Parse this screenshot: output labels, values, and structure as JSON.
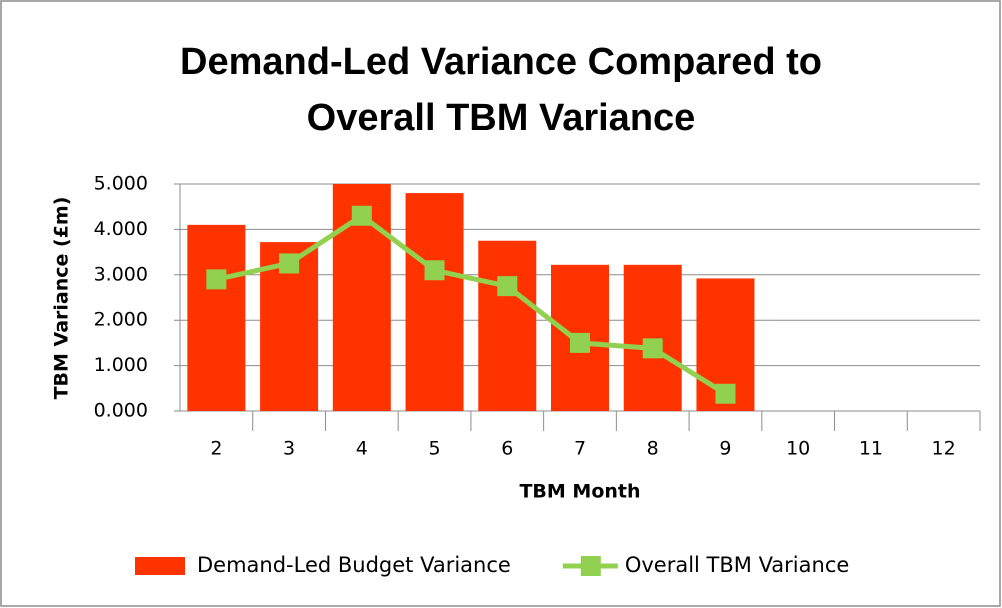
{
  "chart_data": {
    "type": "bar",
    "title": "Demand-Led Variance Compared to Overall TBM Variance",
    "x_label": "TBM Month",
    "y_label": "TBM Variance (£m)",
    "categories": [
      "2",
      "3",
      "4",
      "5",
      "6",
      "7",
      "8",
      "9",
      "10",
      "11",
      "12"
    ],
    "series": [
      {
        "name": "Demand-Led Budget Variance",
        "color": "#ff3300",
        "type": "bar",
        "values": [
          4.1,
          3.72,
          5.0,
          4.8,
          3.75,
          3.22,
          3.22,
          2.92,
          null,
          null,
          null
        ]
      },
      {
        "name": "Overall TBM Variance",
        "color": "#92d050",
        "type": "line",
        "values": [
          2.9,
          3.25,
          4.3,
          3.1,
          2.75,
          1.5,
          1.38,
          0.38,
          null,
          null,
          null
        ]
      }
    ],
    "ylim": [
      0,
      5
    ],
    "yticks": [
      {
        "value": 0,
        "label": "0.000"
      },
      {
        "value": 1,
        "label": "1.000"
      },
      {
        "value": 2,
        "label": "2.000"
      },
      {
        "value": 3,
        "label": "3.000"
      },
      {
        "value": 4,
        "label": "4.000"
      },
      {
        "value": 5,
        "label": "5.000"
      }
    ],
    "grid": true,
    "legend": "bottom"
  }
}
